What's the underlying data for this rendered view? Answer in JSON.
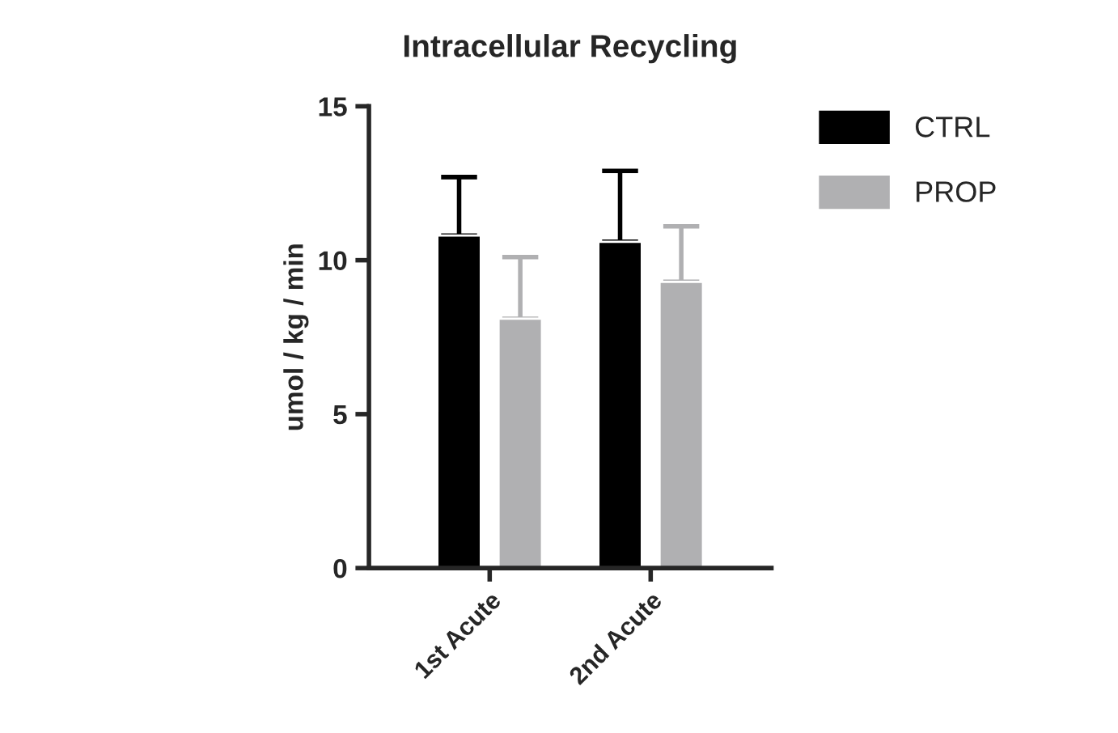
{
  "chart_data": {
    "type": "bar",
    "title": "Intracellular Recycling",
    "ylabel": "umol / kg / min",
    "categories": [
      "1st Acute",
      "2nd Acute"
    ],
    "series": [
      {
        "name": "CTRL",
        "color": "#000000",
        "values": [
          10.8,
          10.6
        ],
        "errors": [
          [
            10.8,
            12.7
          ],
          [
            10.6,
            12.9
          ]
        ]
      },
      {
        "name": "PROP",
        "color": "#b0b0b2",
        "values": [
          8.1,
          9.3
        ],
        "errors": [
          [
            8.1,
            10.1
          ],
          [
            9.3,
            11.1
          ]
        ]
      }
    ],
    "ylim": [
      0,
      15
    ],
    "yticks": [
      0,
      5,
      10,
      15
    ],
    "grid": false,
    "legend": "top right"
  }
}
